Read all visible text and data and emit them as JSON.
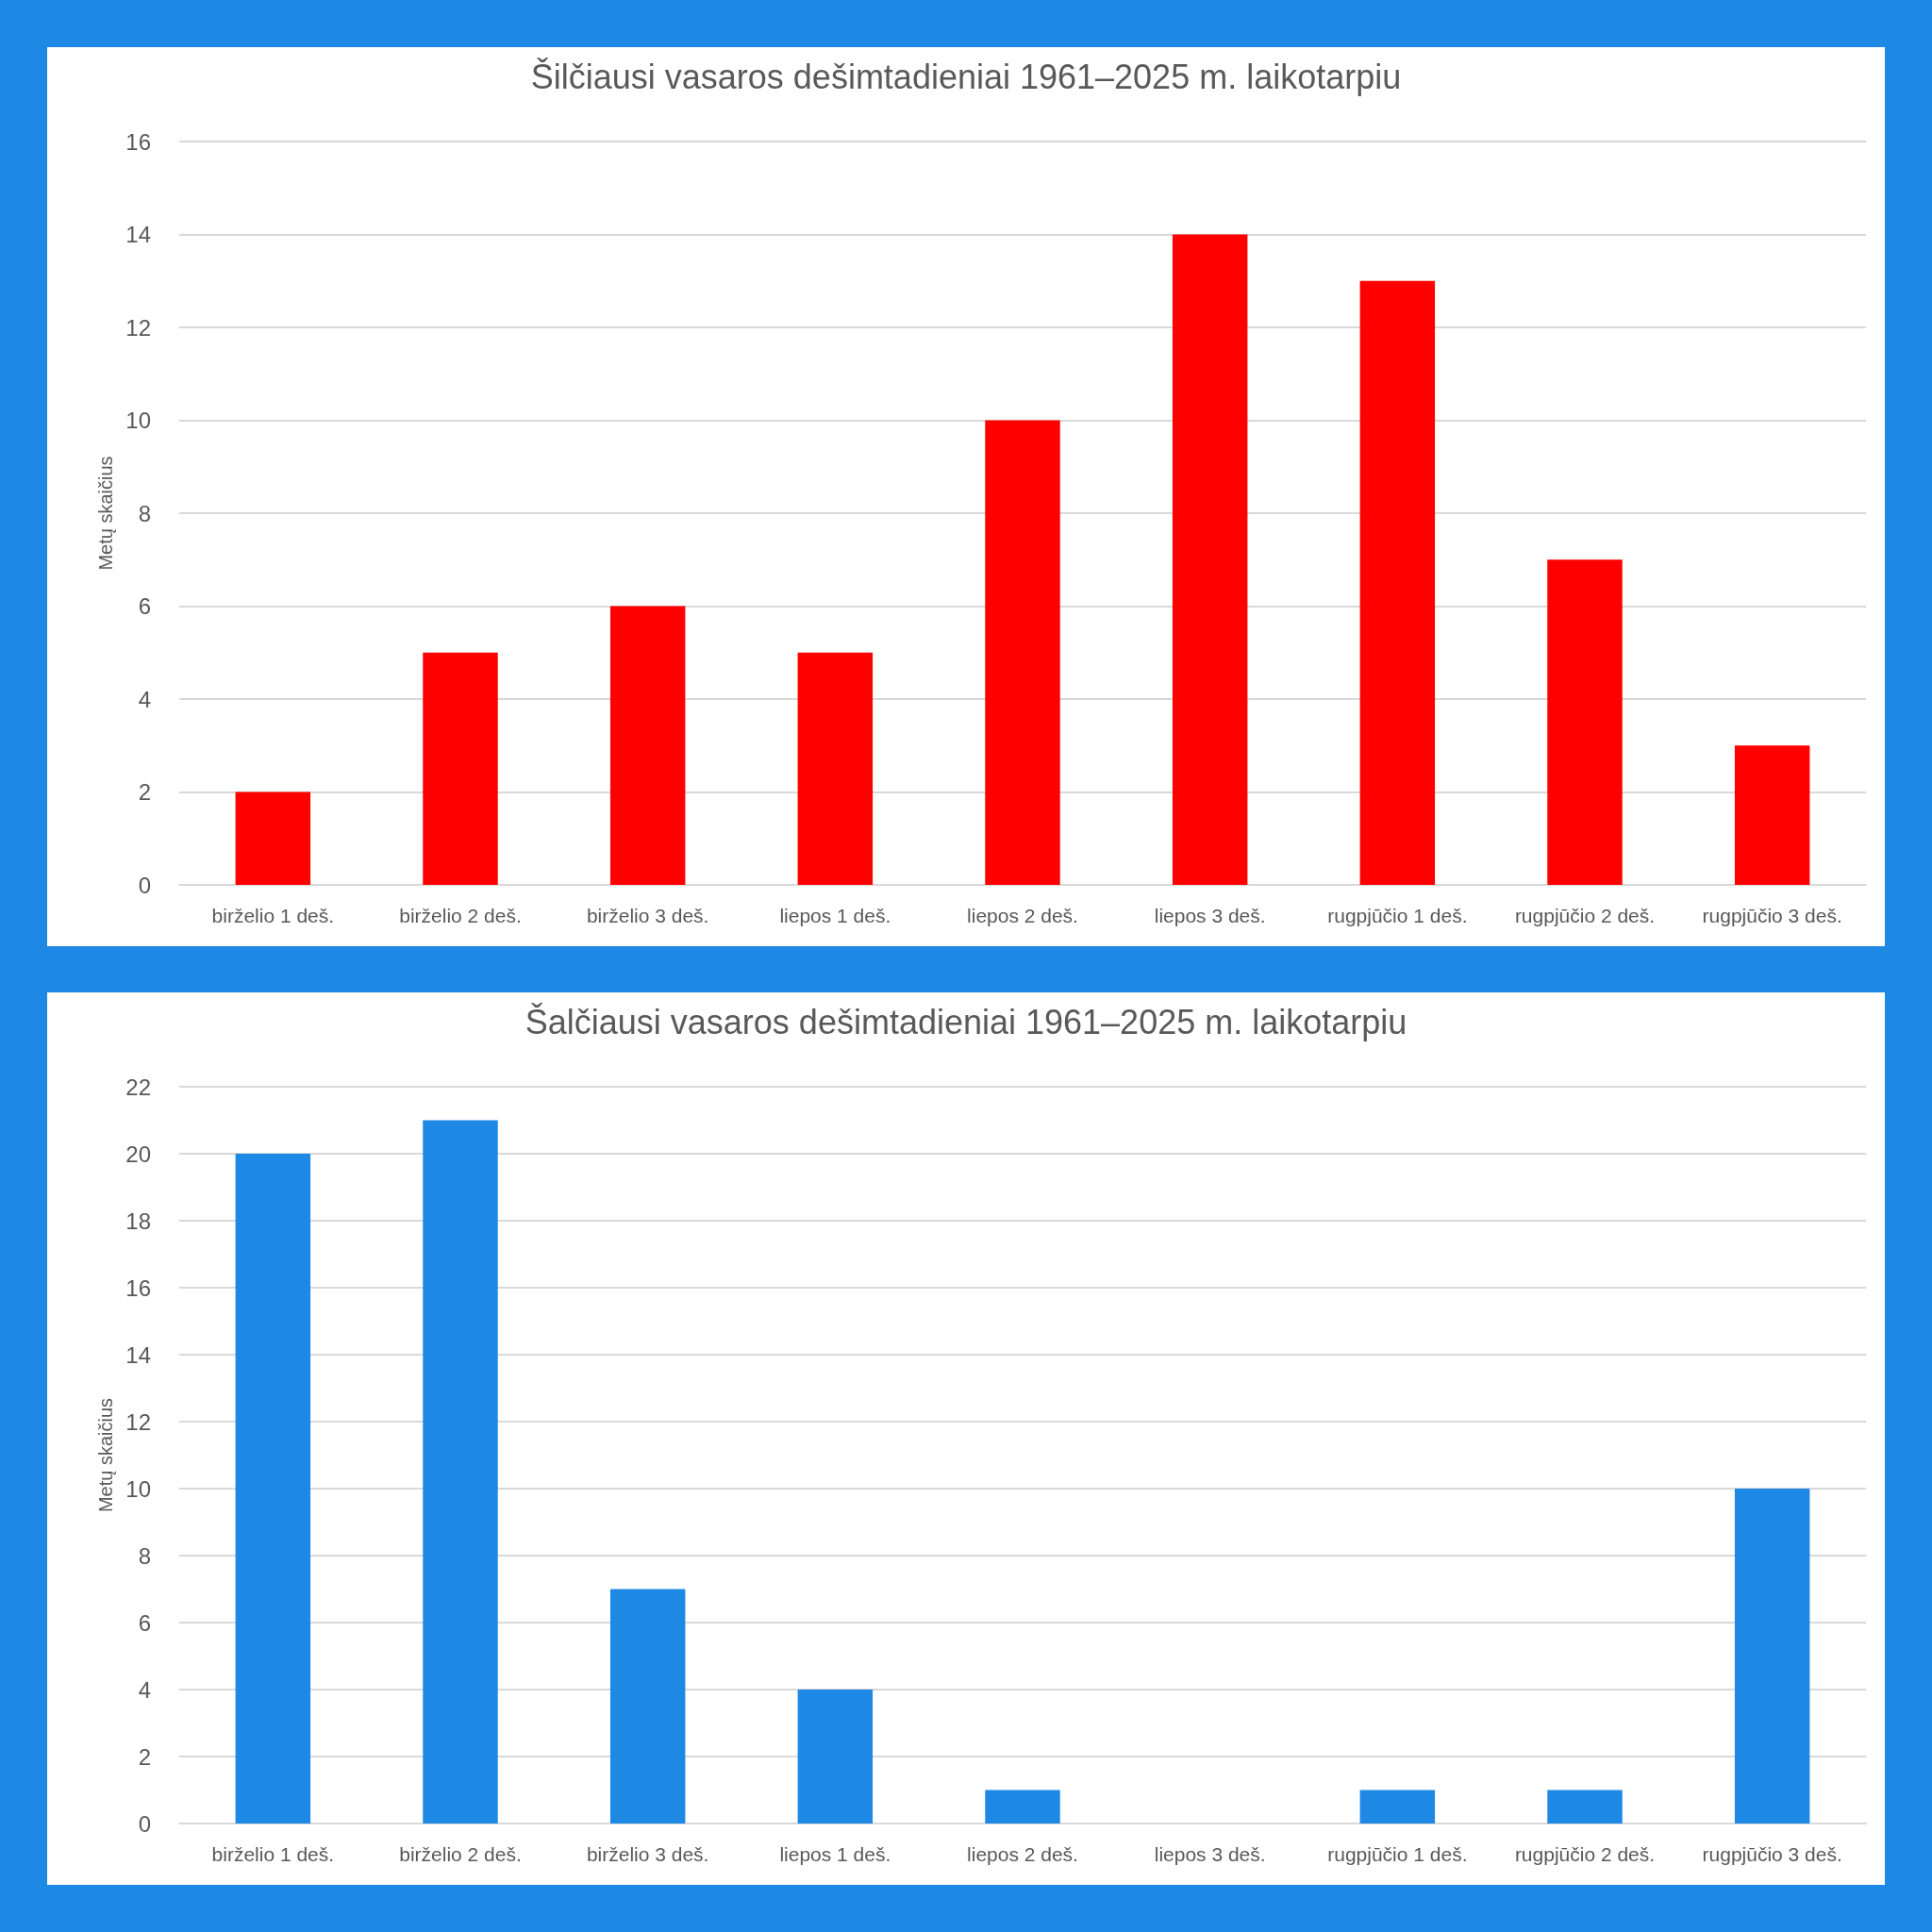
{
  "chart_data": [
    {
      "type": "bar",
      "title": "Šilčiausi vasaros dešimtadieniai 1961–2025 m. laikotarpiu",
      "ylabel": "Metų skaičius",
      "categories": [
        "birželio 1 deš.",
        "birželio 2 deš.",
        "birželio 3 deš.",
        "liepos 1 deš.",
        "liepos 2 deš.",
        "liepos 3 deš.",
        "rugpjūčio 1 deš.",
        "rugpjūčio 2 deš.",
        "rugpjūčio 3 deš."
      ],
      "values": [
        2,
        5,
        6,
        5,
        10,
        14,
        13,
        7,
        3
      ],
      "color": "#ff0000",
      "ylim": [
        0,
        16
      ],
      "yticks": [
        0,
        2,
        4,
        6,
        8,
        10,
        12,
        14,
        16
      ],
      "grid": "y"
    },
    {
      "type": "bar",
      "title": "Šalčiausi vasaros dešimtadieniai 1961–2025 m. laikotarpiu",
      "ylabel": "Metų skaičius",
      "categories": [
        "birželio 1 deš.",
        "birželio 2 deš.",
        "birželio 3 deš.",
        "liepos 1 deš.",
        "liepos 2 deš.",
        "liepos 3 deš.",
        "rugpjūčio 1 deš.",
        "rugpjūčio 2 deš.",
        "rugpjūčio 3 deš."
      ],
      "values": [
        20,
        21,
        7,
        4,
        1,
        0,
        1,
        1,
        10
      ],
      "color": "#1e88e5",
      "ylim": [
        0,
        22
      ],
      "yticks": [
        0,
        2,
        4,
        6,
        8,
        10,
        12,
        14,
        16,
        18,
        20,
        22
      ],
      "grid": "y"
    }
  ]
}
